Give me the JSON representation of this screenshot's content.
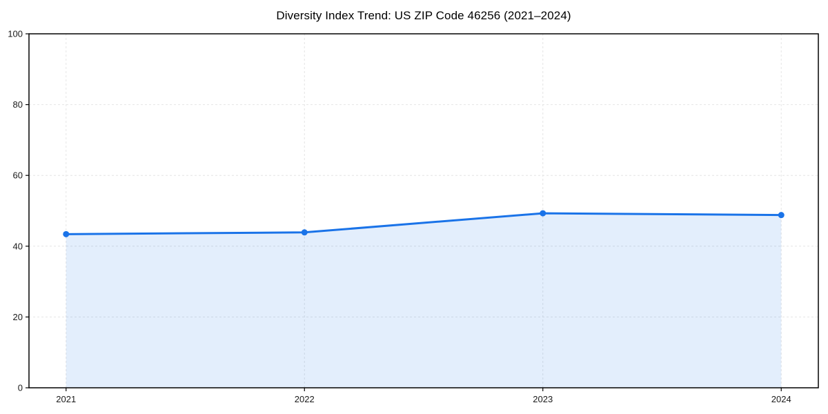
{
  "figure": {
    "background": "#ffffff"
  },
  "chart_data": {
    "type": "area",
    "title": "Diversity Index Trend: US ZIP Code 46256 (2021–2024)",
    "categories": [
      "2021",
      "2022",
      "2023",
      "2024"
    ],
    "series": [
      {
        "name": "Diversity Index",
        "values": [
          43.4,
          43.9,
          49.3,
          48.8
        ]
      }
    ],
    "xlabel": "",
    "ylabel": "",
    "ylim": [
      0,
      100
    ],
    "yticks": [
      0,
      20,
      40,
      60,
      80,
      100
    ],
    "grid": true,
    "grid_style": "dashed",
    "legend": "none",
    "marker": "circle",
    "colors": {
      "line": "#1a73e8",
      "marker": "#1a73e8",
      "fill": "#1a73e8",
      "fill_opacity": 0.12,
      "grid": "#dedede",
      "spine": "#000000",
      "tick_label": "#1a1a1a",
      "title": "#000000"
    }
  }
}
